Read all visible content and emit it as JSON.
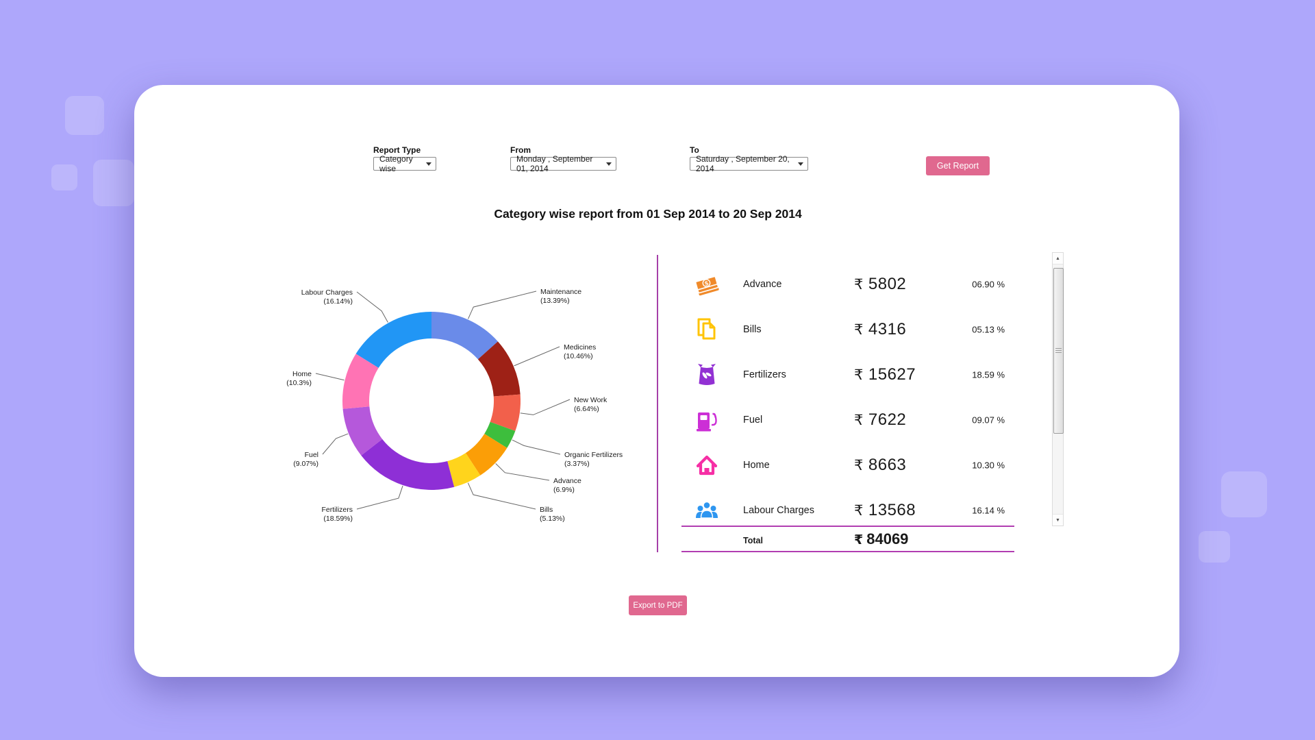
{
  "page": {
    "background_color": "#AEA7FB",
    "card_color": "#FFFFFF",
    "accent_color": "#E0688F"
  },
  "controls": {
    "report_type_label": "Report Type",
    "report_type_value": "Category wise",
    "from_label": "From",
    "from_value": "Monday , September 01, 2014",
    "to_label": "To",
    "to_value": "Saturday , September 20, 2014",
    "get_report_label": "Get Report"
  },
  "title": "Category wise report from 01 Sep 2014 to 20 Sep 2014",
  "chart_data": {
    "type": "pie",
    "donut": true,
    "start_angle": "top",
    "direction": "clockwise",
    "title": "Category wise report from 01 Sep 2014 to 20 Sep 2014",
    "legend_position": "callout-labels",
    "slices": [
      {
        "label": "Maintenance",
        "pct": 13.39,
        "pct_label": "(13.39%)",
        "color": "#6A8BE9"
      },
      {
        "label": "Medicines",
        "pct": 10.46,
        "pct_label": "(10.46%)",
        "color": "#9E2116"
      },
      {
        "label": "New Work",
        "pct": 6.64,
        "pct_label": "(6.64%)",
        "color": "#F2604B"
      },
      {
        "label": "Organic Fertilizers",
        "pct": 3.37,
        "pct_label": "(3.37%)",
        "color": "#3DBE3D"
      },
      {
        "label": "Advance",
        "pct": 6.9,
        "pct_label": "(6.9%)",
        "color": "#FB9E07"
      },
      {
        "label": "Bills",
        "pct": 5.13,
        "pct_label": "(5.13%)",
        "color": "#FFD41C"
      },
      {
        "label": "Fertilizers",
        "pct": 18.59,
        "pct_label": "(18.59%)",
        "color": "#8E2FD6"
      },
      {
        "label": "Fuel",
        "pct": 9.07,
        "pct_label": "(9.07%)",
        "color": "#B558DB"
      },
      {
        "label": "Home",
        "pct": 10.3,
        "pct_label": "(10.3%)",
        "color": "#FF73B4"
      },
      {
        "label": "Labour Charges",
        "pct": 16.14,
        "pct_label": "(16.14%)",
        "color": "#2196F5"
      }
    ]
  },
  "summary": {
    "currency": "₹",
    "rows": [
      {
        "icon": "money-icon",
        "icon_color": "#F08A2A",
        "name": "Advance",
        "amount": "5802",
        "pct": "06.90 %"
      },
      {
        "icon": "bills-icon",
        "icon_color": "#FFC408",
        "name": "Bills",
        "amount": "4316",
        "pct": "05.13 %"
      },
      {
        "icon": "fertilizer-sack-icon",
        "icon_color": "#9231D3",
        "name": "Fertilizers",
        "amount": "15627",
        "pct": "18.59 %"
      },
      {
        "icon": "fuel-pump-icon",
        "icon_color": "#CC2FD6",
        "name": "Fuel",
        "amount": "7622",
        "pct": "09.07 %"
      },
      {
        "icon": "home-icon",
        "icon_color": "#F62FA5",
        "name": "Home",
        "amount": "8663",
        "pct": "10.30 %"
      },
      {
        "icon": "people-icon",
        "icon_color": "#2E96F0",
        "name": "Labour Charges",
        "amount": "13568",
        "pct": "16.14 %"
      }
    ],
    "total_label": "Total",
    "total_amount": "84069"
  },
  "export_button_label": "Export to PDF"
}
